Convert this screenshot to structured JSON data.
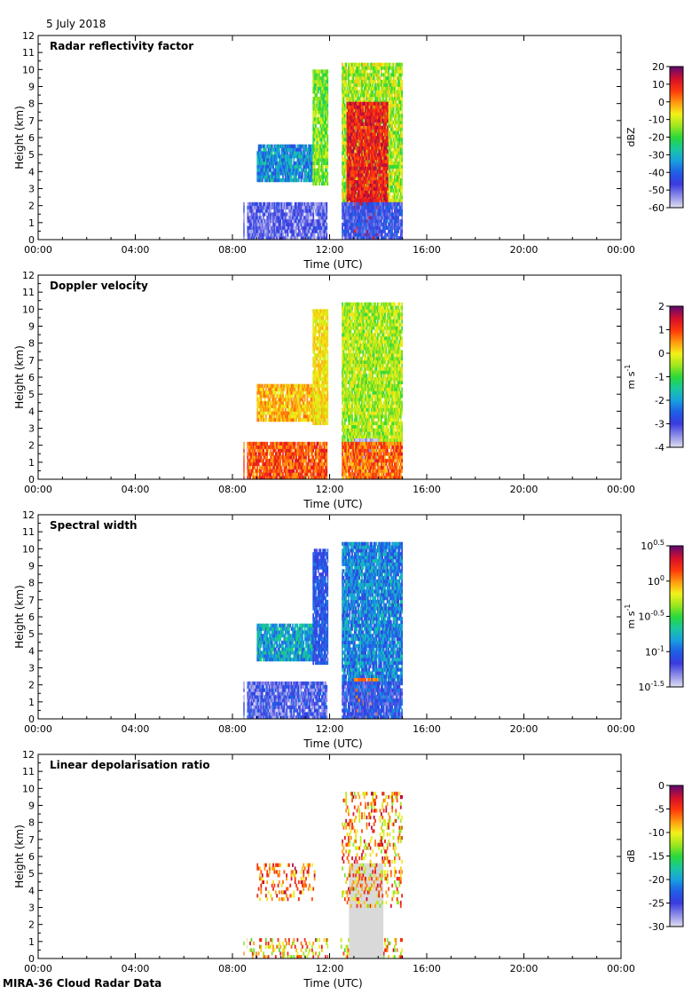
{
  "page": {
    "date": "5 July 2018",
    "footer": "MIRA-36 Cloud Radar Data"
  },
  "colors": {
    "plot_border": "#000000",
    "missing_grey": "#d9d9d9",
    "colormap": [
      "#dcdcf0",
      "#8a8ae8",
      "#3a3ae0",
      "#1f5fe6",
      "#19a0e0",
      "#18c8a0",
      "#28d83a",
      "#9ee61e",
      "#f2f21a",
      "#ff9a10",
      "#ff3a0a",
      "#d8102a",
      "#6a0a6a"
    ]
  },
  "chart_data": [
    {
      "type": "heatmap",
      "title": "Radar reflectivity factor",
      "xlabel": "Time (UTC)",
      "ylabel": "Height (km)",
      "xlim": [
        0,
        24
      ],
      "ylim": [
        0,
        12
      ],
      "x_ticks": [
        "00:00",
        "04:00",
        "08:00",
        "12:00",
        "16:00",
        "20:00",
        "00:00"
      ],
      "y_ticks": [
        "0",
        "1",
        "2",
        "3",
        "4",
        "5",
        "6",
        "7",
        "8",
        "9",
        "10",
        "11",
        "12"
      ],
      "colorbar": {
        "label": "dBZ",
        "range": [
          -60,
          20
        ],
        "ticks": [
          "20",
          "10",
          "0",
          "-10",
          "-20",
          "-30",
          "-40",
          "-50",
          "-60"
        ],
        "power_of_ten": false
      },
      "regions": [
        {
          "t": [
            8.45,
            11.9
          ],
          "h": [
            0.0,
            2.1
          ],
          "v": 0.13,
          "noise": 0.1
        },
        {
          "t": [
            9.0,
            11.4
          ],
          "h": [
            3.4,
            5.5
          ],
          "v": 0.32,
          "noise": 0.12
        },
        {
          "t": [
            11.3,
            11.95
          ],
          "h": [
            3.2,
            9.8
          ],
          "v": 0.55,
          "noise": 0.1
        },
        {
          "t": [
            12.5,
            15.0
          ],
          "h": [
            2.0,
            10.2
          ],
          "v": 0.6,
          "noise": 0.12
        },
        {
          "t": [
            12.7,
            14.4
          ],
          "h": [
            1.5,
            8.0
          ],
          "v": 0.88,
          "noise": 0.08
        },
        {
          "t": [
            13.0,
            14.0
          ],
          "h": [
            0.0,
            2.2
          ],
          "v": 0.9,
          "noise": 0.04
        },
        {
          "t": [
            12.5,
            15.0
          ],
          "h": [
            0.0,
            2.1
          ],
          "v": 0.18,
          "noise": 0.1
        }
      ]
    },
    {
      "type": "heatmap",
      "title": "Doppler velocity",
      "xlabel": "Time (UTC)",
      "ylabel": "Height (km)",
      "xlim": [
        0,
        24
      ],
      "ylim": [
        0,
        12
      ],
      "x_ticks": [
        "00:00",
        "04:00",
        "08:00",
        "12:00",
        "16:00",
        "20:00",
        "00:00"
      ],
      "y_ticks": [
        "0",
        "1",
        "2",
        "3",
        "4",
        "5",
        "6",
        "7",
        "8",
        "9",
        "10",
        "11",
        "12"
      ],
      "colorbar": {
        "label": "m s-1",
        "range": [
          -4,
          2
        ],
        "ticks": [
          "2",
          "1",
          "0",
          "-1",
          "-2",
          "-3",
          "-4"
        ],
        "power_of_ten": false
      },
      "regions": [
        {
          "t": [
            8.45,
            11.9
          ],
          "h": [
            0.0,
            2.1
          ],
          "v": 0.82,
          "noise": 0.1
        },
        {
          "t": [
            9.0,
            11.4
          ],
          "h": [
            3.4,
            5.5
          ],
          "v": 0.72,
          "noise": 0.08
        },
        {
          "t": [
            11.3,
            11.95
          ],
          "h": [
            3.2,
            9.8
          ],
          "v": 0.68,
          "noise": 0.06
        },
        {
          "t": [
            12.5,
            15.0
          ],
          "h": [
            2.0,
            10.2
          ],
          "v": 0.6,
          "noise": 0.1
        },
        {
          "t": [
            13.0,
            14.0
          ],
          "h": [
            0.0,
            2.2
          ],
          "v": 0.05,
          "noise": 0.05
        },
        {
          "t": [
            12.5,
            15.0
          ],
          "h": [
            0.0,
            2.1
          ],
          "v": 0.8,
          "noise": 0.1
        }
      ]
    },
    {
      "type": "heatmap",
      "title": "Spectral width",
      "xlabel": "Time (UTC)",
      "ylabel": "Height (km)",
      "xlim": [
        0,
        24
      ],
      "ylim": [
        0,
        12
      ],
      "x_ticks": [
        "00:00",
        "04:00",
        "08:00",
        "12:00",
        "16:00",
        "20:00",
        "00:00"
      ],
      "y_ticks": [
        "0",
        "1",
        "2",
        "3",
        "4",
        "5",
        "6",
        "7",
        "8",
        "9",
        "10",
        "11",
        "12"
      ],
      "colorbar": {
        "label": "m s-1",
        "range": [
          -1.5,
          0.5
        ],
        "ticks": [
          "0.5",
          "0",
          "-0.5",
          "-1",
          "-1.5"
        ],
        "power_of_ten": true
      },
      "regions": [
        {
          "t": [
            8.45,
            11.9
          ],
          "h": [
            0.0,
            2.1
          ],
          "v": 0.15,
          "noise": 0.12
        },
        {
          "t": [
            9.0,
            11.4
          ],
          "h": [
            3.4,
            5.5
          ],
          "v": 0.35,
          "noise": 0.12
        },
        {
          "t": [
            11.3,
            11.95
          ],
          "h": [
            3.2,
            9.8
          ],
          "v": 0.22,
          "noise": 0.08
        },
        {
          "t": [
            12.5,
            15.0
          ],
          "h": [
            2.0,
            10.2
          ],
          "v": 0.3,
          "noise": 0.12
        },
        {
          "t": [
            13.0,
            14.0
          ],
          "h": [
            0.0,
            2.2
          ],
          "v": 0.78,
          "noise": 0.04
        },
        {
          "t": [
            12.5,
            15.0
          ],
          "h": [
            0.0,
            2.1
          ],
          "v": 0.2,
          "noise": 0.12
        }
      ]
    },
    {
      "type": "heatmap",
      "title": "Linear depolarisation ratio",
      "xlabel": "Time (UTC)",
      "ylabel": "Height (km)",
      "xlim": [
        0,
        24
      ],
      "ylim": [
        0,
        12
      ],
      "x_ticks": [
        "00:00",
        "04:00",
        "08:00",
        "12:00",
        "16:00",
        "20:00",
        "00:00"
      ],
      "y_ticks": [
        "0",
        "1",
        "2",
        "3",
        "4",
        "5",
        "6",
        "7",
        "8",
        "9",
        "10",
        "11",
        "12"
      ],
      "colorbar": {
        "label": "dB",
        "range": [
          -30,
          0
        ],
        "ticks": [
          "0",
          "-5",
          "-10",
          "-15",
          "-20",
          "-25",
          "-30"
        ],
        "power_of_ten": false
      },
      "regions": [
        {
          "t": [
            8.45,
            15.0
          ],
          "h": [
            0.0,
            1.2
          ],
          "v": 0.72,
          "noise": 0.2
        },
        {
          "t": [
            12.8,
            14.2
          ],
          "h": [
            0.0,
            5.5
          ],
          "v": -1,
          "noise": 0
        },
        {
          "t": [
            12.5,
            15.0
          ],
          "h": [
            3.0,
            9.6
          ],
          "v": 0.75,
          "noise": 0.2
        },
        {
          "t": [
            9.0,
            11.4
          ],
          "h": [
            3.4,
            5.5
          ],
          "v": 0.8,
          "noise": 0.15
        }
      ]
    }
  ]
}
